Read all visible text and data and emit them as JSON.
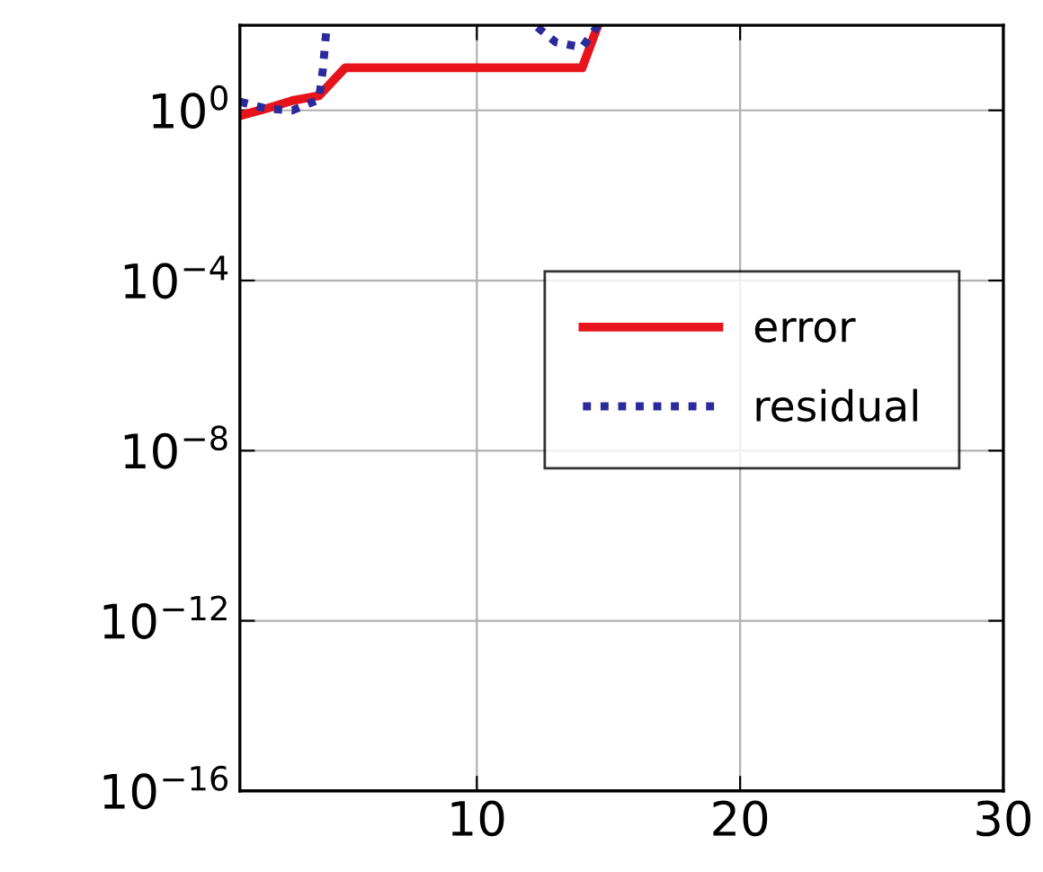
{
  "chart_data": {
    "type": "line",
    "log": "y",
    "grid": true,
    "legend": "center right",
    "marker": "none",
    "xlim": [
      1,
      30
    ],
    "xticks": [
      10,
      20,
      30
    ],
    "ylim": [
      1e-16,
      100
    ],
    "yticks": [
      {
        "value": 1e-16,
        "label": "10$^{−16}$"
      },
      {
        "value": 1e-12,
        "label": "10$^{−12}$"
      },
      {
        "value": 1e-08,
        "label": "10$^{−8}$"
      },
      {
        "value": 0.0001,
        "label": "10$^{−4}$"
      },
      {
        "value": 1,
        "label": "10$^{0}$"
      }
    ],
    "series": [
      {
        "name": "error",
        "color": "#e8141c",
        "line_style": "solid",
        "x": [
          1,
          2,
          3,
          4,
          5,
          6,
          7,
          8,
          9,
          10,
          11,
          12,
          13,
          14,
          14.6
        ],
        "values": [
          0.75,
          1.1,
          1.7,
          2.2,
          10,
          10,
          10,
          10,
          10,
          10,
          10,
          10,
          10,
          10,
          100
        ]
      },
      {
        "name": "residual",
        "color": "#2a2a9a",
        "line_style": "dotted",
        "x": [
          1,
          2,
          3,
          4,
          4.15,
          4.3,
          8,
          12.3,
          13,
          14,
          14.6
        ],
        "values": [
          1.6,
          1.1,
          1.0,
          1.8,
          9,
          100,
          null,
          90,
          40,
          30,
          100
        ]
      }
    ]
  }
}
